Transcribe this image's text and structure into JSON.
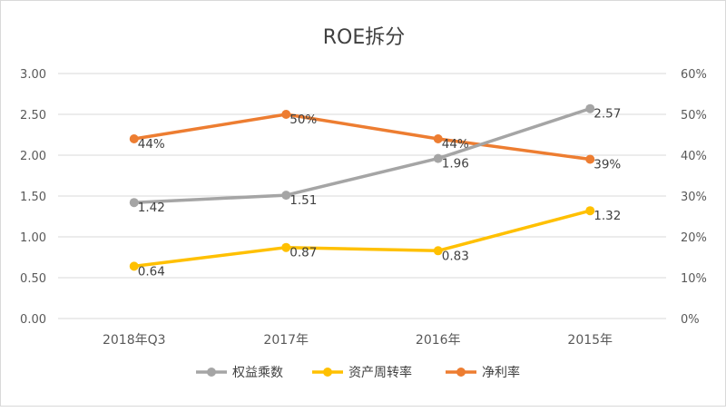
{
  "chart_data": {
    "type": "line",
    "title": "ROE拆分",
    "categories": [
      "2018年Q3",
      "2017年",
      "2016年",
      "2015年"
    ],
    "y_left": {
      "ticks": [
        "0.00",
        "0.50",
        "1.00",
        "1.50",
        "2.00",
        "2.50",
        "3.00"
      ],
      "ylim": [
        0,
        3
      ]
    },
    "y_right": {
      "ticks": [
        "0%",
        "10%",
        "20%",
        "30%",
        "40%",
        "50%",
        "60%"
      ],
      "ylim": [
        0,
        0.6
      ]
    },
    "grid": true,
    "legend_position": "bottom",
    "series": [
      {
        "name": "权益乘数",
        "axis": "left",
        "color": "#a5a5a5",
        "values": [
          1.42,
          1.51,
          1.96,
          2.57
        ],
        "labels": [
          "1.42",
          "1.51",
          "1.96",
          "2.57"
        ]
      },
      {
        "name": "资产周转率",
        "axis": "left",
        "color": "#ffc000",
        "values": [
          0.64,
          0.87,
          0.83,
          1.32
        ],
        "labels": [
          "0.64",
          "0.87",
          "0.83",
          "1.32"
        ]
      },
      {
        "name": "净利率",
        "axis": "right",
        "color": "#ed7d31",
        "values": [
          0.44,
          0.5,
          0.44,
          0.39
        ],
        "labels": [
          "44%",
          "50%",
          "44%",
          "39%"
        ]
      }
    ]
  }
}
